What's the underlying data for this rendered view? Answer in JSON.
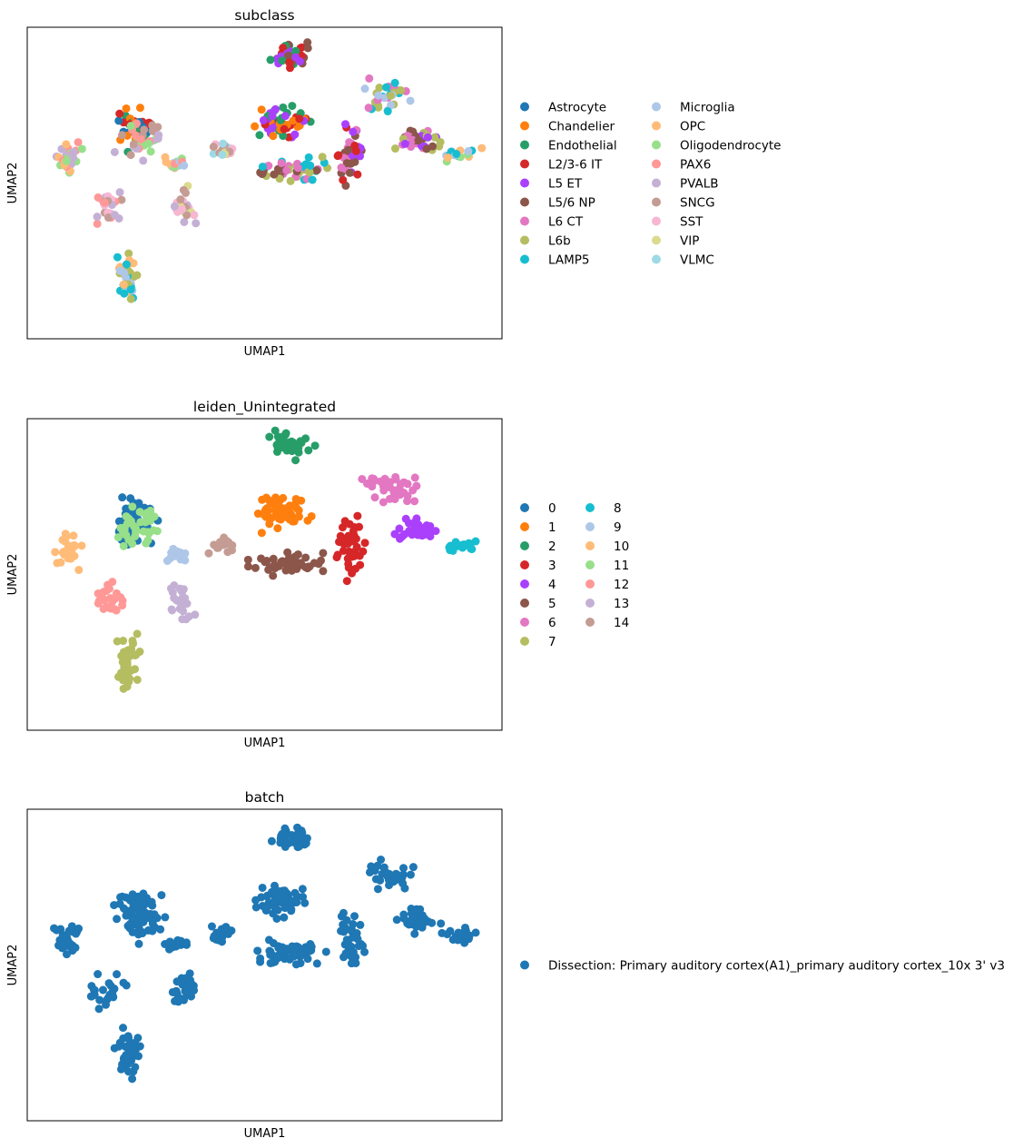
{
  "chart_data": [
    {
      "type": "scatter",
      "title": "subclass",
      "xlabel": "UMAP1",
      "ylabel": "UMAP2",
      "legend_placement": "right, outside, 2 columns",
      "grid": false,
      "ticks": "none",
      "legend": [
        {
          "name": "Astrocyte",
          "color": "#1f77b4"
        },
        {
          "name": "Chandelier",
          "color": "#ff7f0e"
        },
        {
          "name": "Endothelial",
          "color": "#279e68"
        },
        {
          "name": "L2/3-6 IT",
          "color": "#d62728"
        },
        {
          "name": "L5 ET",
          "color": "#aa40fc"
        },
        {
          "name": "L5/6 NP",
          "color": "#8c564b"
        },
        {
          "name": "L6 CT",
          "color": "#e377c2"
        },
        {
          "name": "L6b",
          "color": "#b5bd61"
        },
        {
          "name": "LAMP5",
          "color": "#17becf"
        },
        {
          "name": "Microglia",
          "color": "#aec7e8"
        },
        {
          "name": "OPC",
          "color": "#ffbb78"
        },
        {
          "name": "Oligodendrocyte",
          "color": "#98df8a"
        },
        {
          "name": "PAX6",
          "color": "#ff9896"
        },
        {
          "name": "PVALB",
          "color": "#c5b0d5"
        },
        {
          "name": "SNCG",
          "color": "#c49c94"
        },
        {
          "name": "SST",
          "color": "#f7b6d2"
        },
        {
          "name": "VIP",
          "color": "#dbdb8d"
        },
        {
          "name": "VLMC",
          "color": "#9edae5"
        }
      ]
    },
    {
      "type": "scatter",
      "title": "leiden_Unintegrated",
      "xlabel": "UMAP1",
      "ylabel": "UMAP2",
      "legend_placement": "right, outside, 2 columns",
      "grid": false,
      "ticks": "none",
      "legend": [
        {
          "name": "0",
          "color": "#1f77b4"
        },
        {
          "name": "1",
          "color": "#ff7f0e"
        },
        {
          "name": "2",
          "color": "#279e68"
        },
        {
          "name": "3",
          "color": "#d62728"
        },
        {
          "name": "4",
          "color": "#aa40fc"
        },
        {
          "name": "5",
          "color": "#8c564b"
        },
        {
          "name": "6",
          "color": "#e377c2"
        },
        {
          "name": "7",
          "color": "#b5bd61"
        },
        {
          "name": "8",
          "color": "#17becf"
        },
        {
          "name": "9",
          "color": "#aec7e8"
        },
        {
          "name": "10",
          "color": "#ffbb78"
        },
        {
          "name": "11",
          "color": "#98df8a"
        },
        {
          "name": "12",
          "color": "#ff9896"
        },
        {
          "name": "13",
          "color": "#c5b0d5"
        },
        {
          "name": "14",
          "color": "#c49c94"
        }
      ]
    },
    {
      "type": "scatter",
      "title": "batch",
      "xlabel": "UMAP1",
      "ylabel": "UMAP2",
      "legend_placement": "right, outside",
      "grid": false,
      "ticks": "none",
      "legend": [
        {
          "name": "Dissection: Primary auditory cortex(A1)_primary auditory cortex_10x 3' v3",
          "color": "#1f77b4"
        }
      ]
    }
  ]
}
